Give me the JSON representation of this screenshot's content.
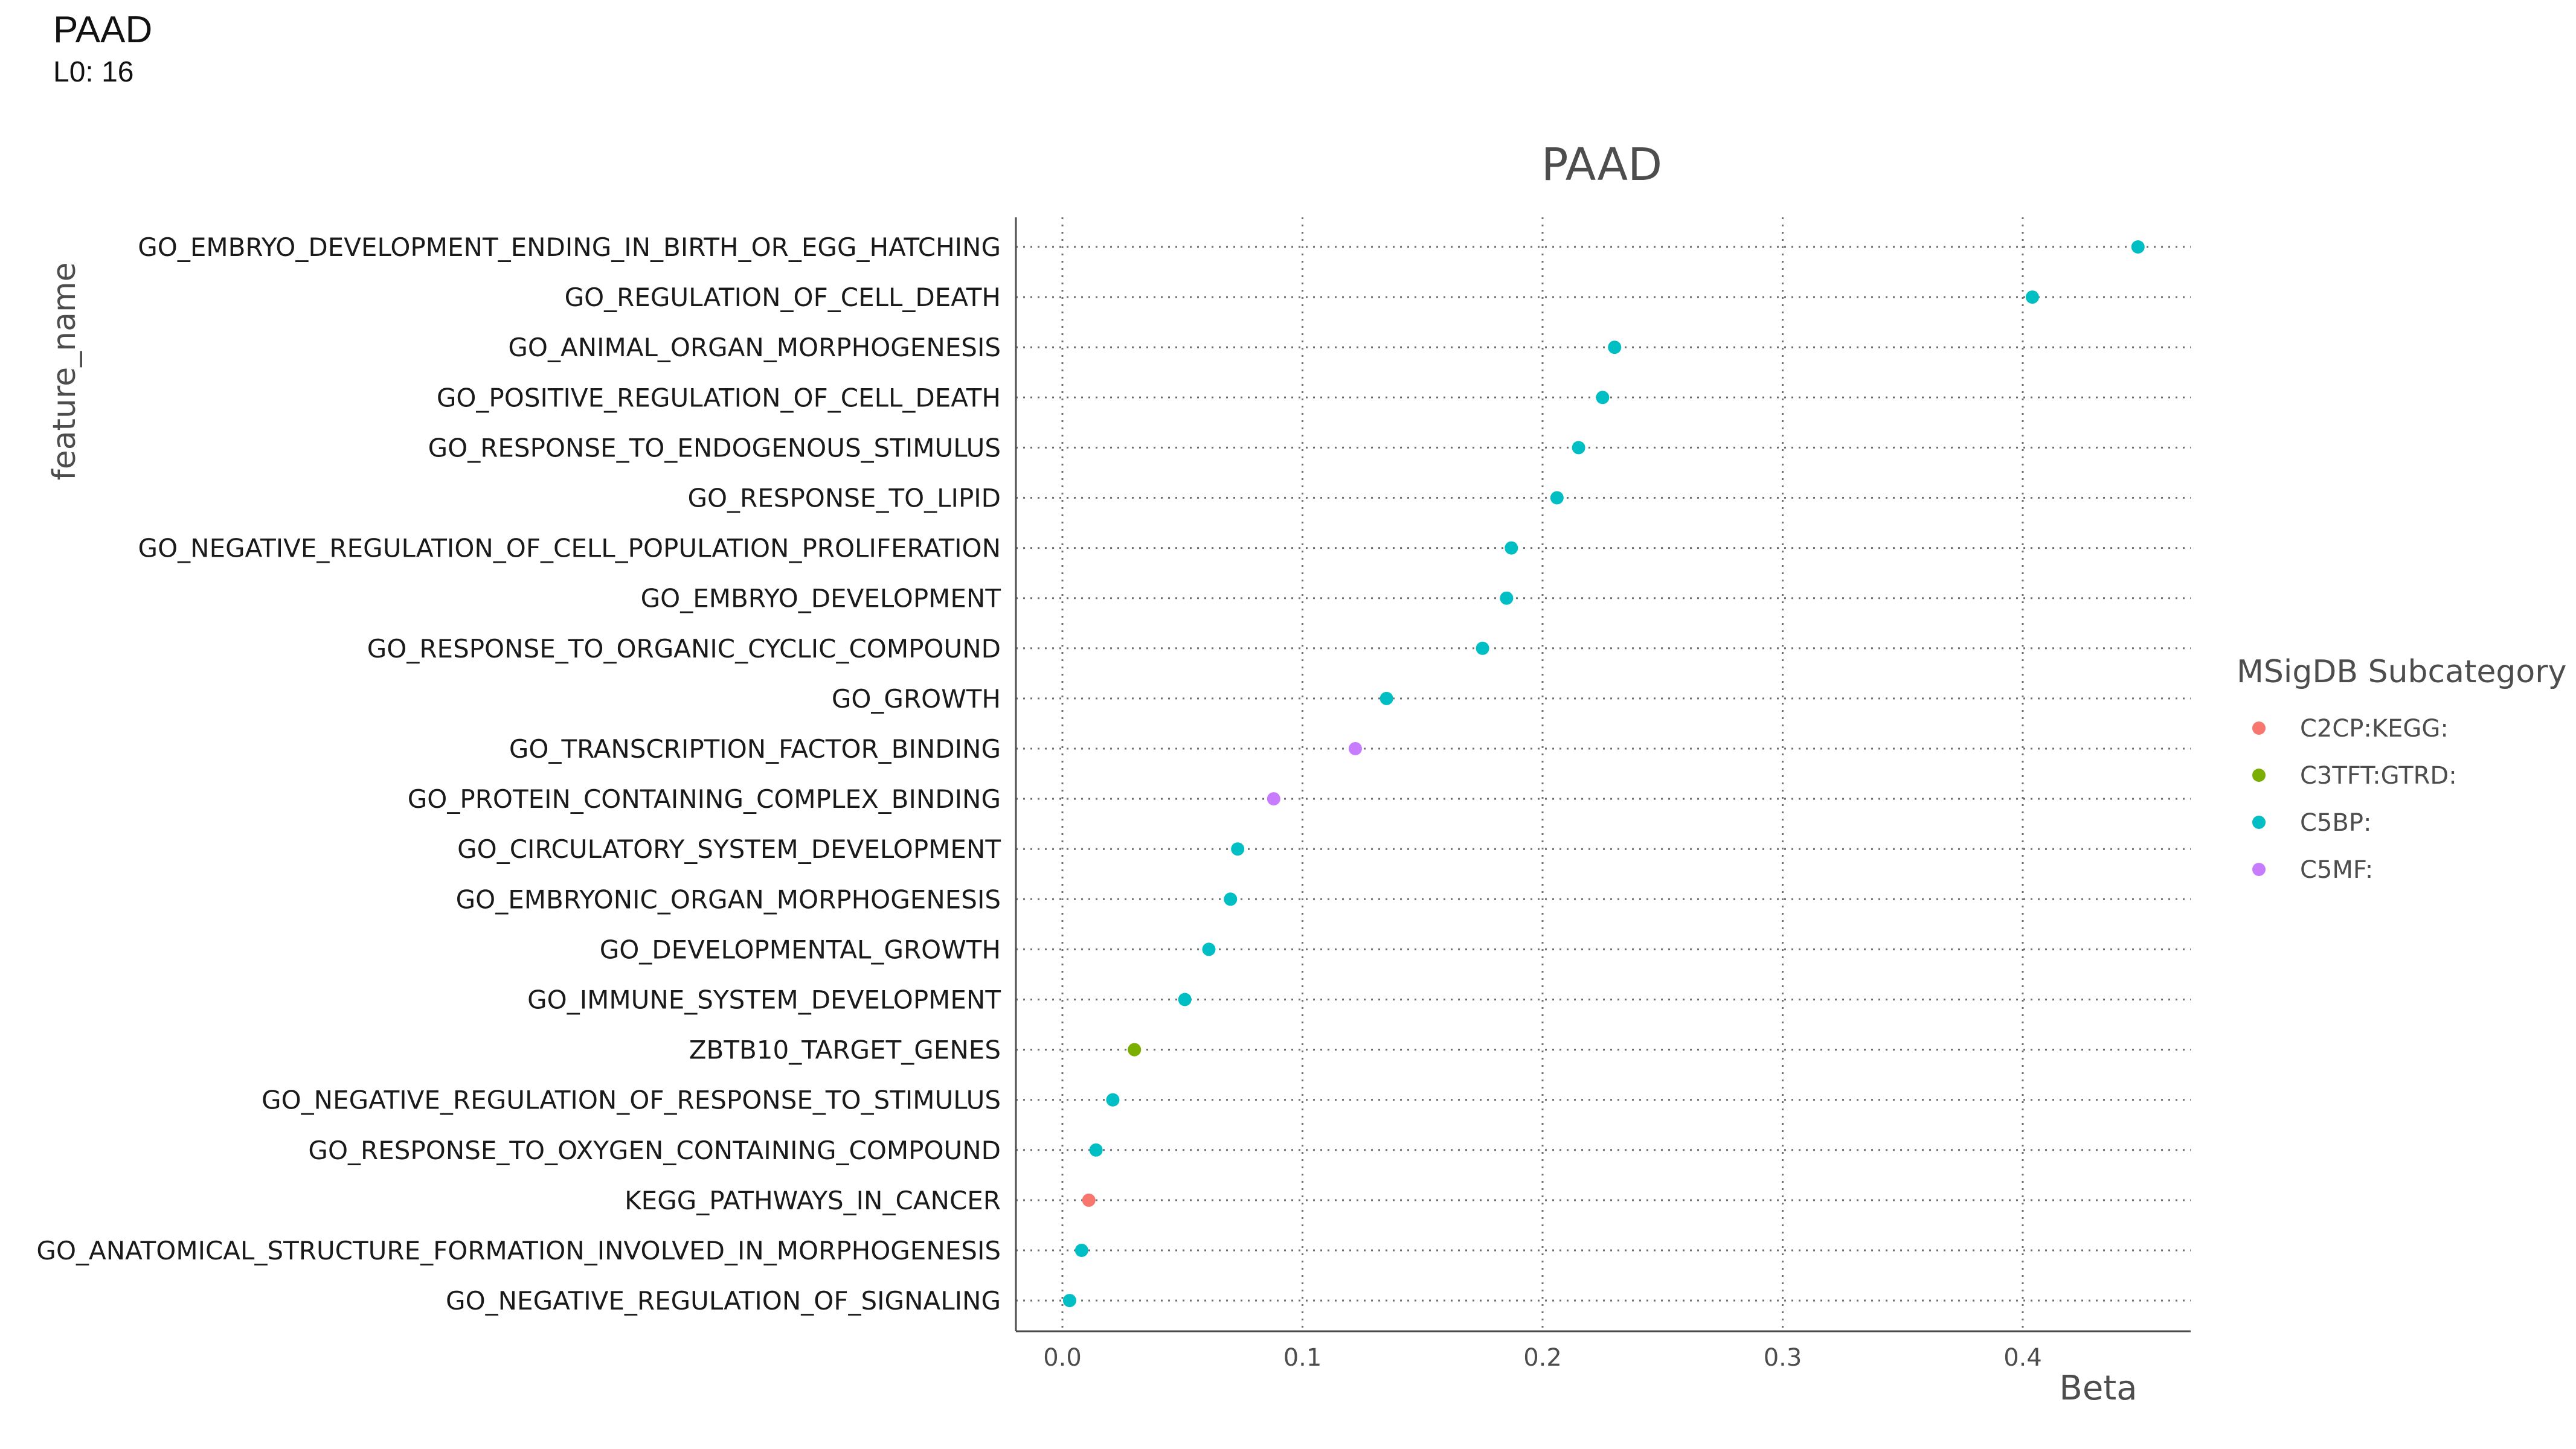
{
  "header": {
    "title": "PAAD",
    "subtitle": "L0: 16"
  },
  "chart_data": {
    "type": "scatter",
    "title": "PAAD",
    "xlabel": "Beta",
    "ylabel": "feature_name",
    "xlim": [
      -0.02,
      0.47
    ],
    "xticks": [
      0.0,
      0.1,
      0.2,
      0.3,
      0.4
    ],
    "xtick_labels": [
      "0.0",
      "0.1",
      "0.2",
      "0.3",
      "0.4"
    ],
    "grid": "dotted",
    "legend": {
      "title": "MSigDB Subcategory",
      "position": "right",
      "entries": [
        {
          "name": "C2CP:KEGG:",
          "color": "#F8766D"
        },
        {
          "name": "C3TFT:GTRD:",
          "color": "#7CAE00"
        },
        {
          "name": "C5BP:",
          "color": "#00BFC4"
        },
        {
          "name": "C5MF:",
          "color": "#C77CFF"
        }
      ]
    },
    "points": [
      {
        "feature": "GO_EMBRYO_DEVELOPMENT_ENDING_IN_BIRTH_OR_EGG_HATCHING",
        "beta": 0.448,
        "category": "C5BP:"
      },
      {
        "feature": "GO_REGULATION_OF_CELL_DEATH",
        "beta": 0.404,
        "category": "C5BP:"
      },
      {
        "feature": "GO_ANIMAL_ORGAN_MORPHOGENESIS",
        "beta": 0.23,
        "category": "C5BP:"
      },
      {
        "feature": "GO_POSITIVE_REGULATION_OF_CELL_DEATH",
        "beta": 0.225,
        "category": "C5BP:"
      },
      {
        "feature": "GO_RESPONSE_TO_ENDOGENOUS_STIMULUS",
        "beta": 0.215,
        "category": "C5BP:"
      },
      {
        "feature": "GO_RESPONSE_TO_LIPID",
        "beta": 0.206,
        "category": "C5BP:"
      },
      {
        "feature": "GO_NEGATIVE_REGULATION_OF_CELL_POPULATION_PROLIFERATION",
        "beta": 0.187,
        "category": "C5BP:"
      },
      {
        "feature": "GO_EMBRYO_DEVELOPMENT",
        "beta": 0.185,
        "category": "C5BP:"
      },
      {
        "feature": "GO_RESPONSE_TO_ORGANIC_CYCLIC_COMPOUND",
        "beta": 0.175,
        "category": "C5BP:"
      },
      {
        "feature": "GO_GROWTH",
        "beta": 0.135,
        "category": "C5BP:"
      },
      {
        "feature": "GO_TRANSCRIPTION_FACTOR_BINDING",
        "beta": 0.122,
        "category": "C5MF:"
      },
      {
        "feature": "GO_PROTEIN_CONTAINING_COMPLEX_BINDING",
        "beta": 0.088,
        "category": "C5MF:"
      },
      {
        "feature": "GO_CIRCULATORY_SYSTEM_DEVELOPMENT",
        "beta": 0.073,
        "category": "C5BP:"
      },
      {
        "feature": "GO_EMBRYONIC_ORGAN_MORPHOGENESIS",
        "beta": 0.07,
        "category": "C5BP:"
      },
      {
        "feature": "GO_DEVELOPMENTAL_GROWTH",
        "beta": 0.061,
        "category": "C5BP:"
      },
      {
        "feature": "GO_IMMUNE_SYSTEM_DEVELOPMENT",
        "beta": 0.051,
        "category": "C5BP:"
      },
      {
        "feature": "ZBTB10_TARGET_GENES",
        "beta": 0.03,
        "category": "C3TFT:GTRD:"
      },
      {
        "feature": "GO_NEGATIVE_REGULATION_OF_RESPONSE_TO_STIMULUS",
        "beta": 0.021,
        "category": "C5BP:"
      },
      {
        "feature": "GO_RESPONSE_TO_OXYGEN_CONTAINING_COMPOUND",
        "beta": 0.014,
        "category": "C5BP:"
      },
      {
        "feature": "KEGG_PATHWAYS_IN_CANCER",
        "beta": 0.011,
        "category": "C2CP:KEGG:"
      },
      {
        "feature": "GO_ANATOMICAL_STRUCTURE_FORMATION_INVOLVED_IN_MORPHOGENESIS",
        "beta": 0.008,
        "category": "C5BP:"
      },
      {
        "feature": "GO_NEGATIVE_REGULATION_OF_SIGNALING",
        "beta": 0.003,
        "category": "C5BP:"
      }
    ]
  }
}
